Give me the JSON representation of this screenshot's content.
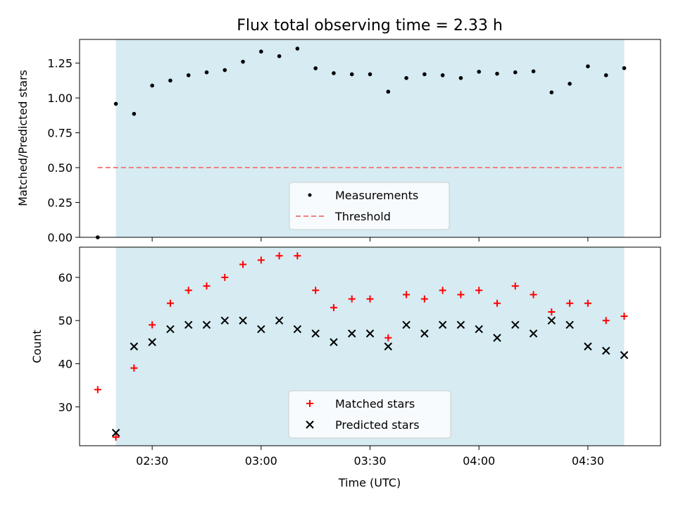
{
  "chart_data": [
    {
      "type": "scatter",
      "title": "Flux total observing time = 2.33 h",
      "ylabel": "Matched/Predicted stars",
      "xlabel": "",
      "ylim": [
        0,
        1.42
      ],
      "yticks": [
        "0.00",
        "0.25",
        "0.50",
        "0.75",
        "1.00",
        "1.25"
      ],
      "ytick_values": [
        0,
        0.25,
        0.5,
        0.75,
        1.0,
        1.25
      ],
      "shaded_span": [
        "02:20",
        "04:40"
      ],
      "shade_color": "#add8e6",
      "legend_position": "lower-center",
      "series": [
        {
          "name": "Measurements",
          "marker": "dot",
          "color": "#000000",
          "x": [
            "02:15",
            "02:20",
            "02:25",
            "02:30",
            "02:35",
            "02:40",
            "02:45",
            "02:50",
            "02:55",
            "03:00",
            "03:05",
            "03:10",
            "03:15",
            "03:20",
            "03:25",
            "03:30",
            "03:35",
            "03:40",
            "03:45",
            "03:50",
            "03:55",
            "04:00",
            "04:05",
            "04:10",
            "04:15",
            "04:20",
            "04:25",
            "04:30",
            "04:35",
            "04:40"
          ],
          "y": [
            0.0,
            0.958,
            0.886,
            1.089,
            1.125,
            1.163,
            1.184,
            1.2,
            1.26,
            1.333,
            1.3,
            1.354,
            1.213,
            1.178,
            1.17,
            1.17,
            1.045,
            1.143,
            1.17,
            1.163,
            1.143,
            1.188,
            1.174,
            1.184,
            1.191,
            1.04,
            1.102,
            1.227,
            1.163,
            1.214
          ]
        },
        {
          "name": "Threshold",
          "marker": "dashed-line",
          "color": "#f08080",
          "x": [
            "02:15",
            "04:40"
          ],
          "y": [
            0.5,
            0.5
          ]
        }
      ]
    },
    {
      "type": "scatter",
      "title": "",
      "ylabel": "Count",
      "xlabel": "Time (UTC)",
      "ylim": [
        21,
        67
      ],
      "yticks": [
        "30",
        "40",
        "50",
        "60"
      ],
      "ytick_values": [
        30,
        40,
        50,
        60
      ],
      "xticks": [
        "02:30",
        "03:00",
        "03:30",
        "04:00",
        "04:30"
      ],
      "xlim": [
        "02:10",
        "04:50"
      ],
      "shaded_span": [
        "02:20",
        "04:40"
      ],
      "shade_color": "#add8e6",
      "legend_position": "lower-center",
      "series": [
        {
          "name": "Matched stars",
          "marker": "plus",
          "color": "#ff0000",
          "x": [
            "02:15",
            "02:20",
            "02:25",
            "02:30",
            "02:35",
            "02:40",
            "02:45",
            "02:50",
            "02:55",
            "03:00",
            "03:05",
            "03:10",
            "03:15",
            "03:20",
            "03:25",
            "03:30",
            "03:35",
            "03:40",
            "03:45",
            "03:50",
            "03:55",
            "04:00",
            "04:05",
            "04:10",
            "04:15",
            "04:20",
            "04:25",
            "04:30",
            "04:35",
            "04:40"
          ],
          "y": [
            34,
            23,
            39,
            49,
            54,
            57,
            58,
            60,
            63,
            64,
            65,
            65,
            57,
            53,
            55,
            55,
            46,
            56,
            55,
            57,
            56,
            57,
            54,
            58,
            56,
            52,
            54,
            54,
            50,
            51
          ]
        },
        {
          "name": "Predicted stars",
          "marker": "x",
          "color": "#000000",
          "x": [
            "02:20",
            "02:25",
            "02:30",
            "02:35",
            "02:40",
            "02:45",
            "02:50",
            "02:55",
            "03:00",
            "03:05",
            "03:10",
            "03:15",
            "03:20",
            "03:25",
            "03:30",
            "03:35",
            "03:40",
            "03:45",
            "03:50",
            "03:55",
            "04:00",
            "04:05",
            "04:10",
            "04:15",
            "04:20",
            "04:25",
            "04:30",
            "04:35",
            "04:40"
          ],
          "y": [
            24,
            44,
            45,
            48,
            49,
            49,
            50,
            50,
            48,
            50,
            48,
            47,
            45,
            47,
            47,
            44,
            49,
            47,
            49,
            49,
            48,
            46,
            49,
            47,
            50,
            49,
            44,
            43,
            42
          ]
        }
      ]
    }
  ]
}
